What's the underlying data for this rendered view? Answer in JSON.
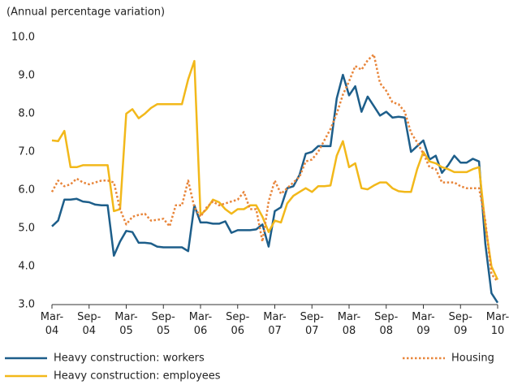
{
  "chart_data": {
    "type": "line",
    "subtitle": "(Annual percentage variation)",
    "categories": [
      "Mar-04",
      null,
      null,
      null,
      null,
      null,
      "Sep-04",
      null,
      null,
      null,
      null,
      null,
      "Mar-05",
      null,
      null,
      null,
      null,
      null,
      "Sep-05",
      null,
      null,
      null,
      null,
      null,
      "Mar-06",
      null,
      null,
      null,
      null,
      null,
      "Sep-06",
      null,
      null,
      null,
      null,
      null,
      "Mar-07",
      null,
      null,
      null,
      null,
      null,
      "Sep-07",
      null,
      null,
      null,
      null,
      null,
      "Mar-08",
      null,
      null,
      null,
      null,
      null,
      "Sep-08",
      null,
      null,
      null,
      null,
      null,
      "Mar-09",
      null,
      null,
      null,
      null,
      null,
      "Sep-09",
      null,
      null,
      null,
      null,
      null,
      "Mar-10"
    ],
    "ylim": [
      3,
      10
    ],
    "yticks": [
      {
        "value": 3,
        "label": "3.0"
      },
      {
        "value": 4,
        "label": "4.0"
      },
      {
        "value": 5,
        "label": "5.0"
      },
      {
        "value": 6,
        "label": "6.0"
      },
      {
        "value": 7,
        "label": "7.0"
      },
      {
        "value": 8,
        "label": "8.0"
      },
      {
        "value": 9,
        "label": "9.0"
      },
      {
        "value": 10,
        "label": "10.0"
      }
    ],
    "grid": false,
    "series": [
      {
        "name": "Heavy construction: workers",
        "color": "#1d5e8a",
        "dash": "solid",
        "values": [
          5.05,
          5.2,
          5.75,
          5.75,
          5.77,
          5.7,
          5.68,
          5.62,
          5.6,
          5.6,
          4.28,
          4.65,
          4.93,
          4.9,
          4.62,
          4.62,
          4.6,
          4.52,
          4.5,
          4.5,
          4.5,
          4.5,
          4.4,
          5.6,
          5.15,
          5.15,
          5.12,
          5.12,
          5.18,
          4.88,
          4.95,
          4.95,
          4.95,
          4.97,
          5.1,
          4.52,
          5.45,
          5.55,
          6.05,
          6.1,
          6.4,
          6.95,
          7.0,
          7.15,
          7.15,
          7.15,
          8.4,
          9.02,
          8.48,
          8.72,
          8.05,
          8.45,
          8.2,
          7.95,
          8.05,
          7.9,
          7.92,
          7.9,
          7.0,
          7.15,
          7.3,
          6.8,
          6.9,
          6.45,
          6.65,
          6.9,
          6.72,
          6.72,
          6.82,
          6.75,
          4.6,
          3.3,
          3.05
        ]
      },
      {
        "name": "Heavy construction: employees",
        "color": "#f2b81a",
        "dash": "solid",
        "values": [
          7.3,
          7.28,
          7.55,
          6.6,
          6.6,
          6.65,
          6.65,
          6.65,
          6.65,
          6.65,
          5.45,
          5.5,
          8.0,
          8.12,
          7.88,
          8.0,
          8.15,
          8.25,
          8.25,
          8.25,
          8.25,
          8.25,
          8.9,
          9.38,
          5.35,
          5.5,
          5.75,
          5.68,
          5.5,
          5.38,
          5.5,
          5.5,
          5.6,
          5.6,
          5.3,
          4.9,
          5.2,
          5.15,
          5.65,
          5.85,
          5.95,
          6.05,
          5.95,
          6.1,
          6.1,
          6.12,
          6.9,
          7.28,
          6.6,
          6.7,
          6.05,
          6.02,
          6.12,
          6.2,
          6.2,
          6.05,
          5.97,
          5.95,
          5.95,
          6.55,
          7.0,
          6.75,
          6.7,
          6.6,
          6.55,
          6.47,
          6.47,
          6.47,
          6.55,
          6.6,
          5.1,
          4.0,
          3.65
        ]
      },
      {
        "name": "Housing",
        "color": "#e8853a",
        "dash": "dotted",
        "values": [
          5.95,
          6.25,
          6.1,
          6.15,
          6.3,
          6.2,
          6.15,
          6.2,
          6.25,
          6.25,
          6.2,
          5.5,
          5.1,
          5.3,
          5.35,
          5.38,
          5.2,
          5.22,
          5.25,
          5.05,
          5.6,
          5.6,
          6.25,
          5.55,
          5.3,
          5.55,
          5.7,
          5.6,
          5.65,
          5.7,
          5.75,
          5.95,
          5.5,
          5.5,
          4.65,
          5.7,
          6.25,
          5.9,
          6.05,
          6.2,
          6.35,
          6.75,
          6.8,
          7.0,
          7.3,
          7.6,
          8.0,
          8.5,
          8.85,
          9.25,
          9.15,
          9.4,
          9.55,
          8.8,
          8.6,
          8.3,
          8.25,
          8.05,
          7.5,
          7.25,
          6.95,
          6.6,
          6.55,
          6.2,
          6.2,
          6.2,
          6.1,
          6.05,
          6.05,
          6.05,
          5.2,
          3.8,
          3.6
        ]
      }
    ]
  }
}
